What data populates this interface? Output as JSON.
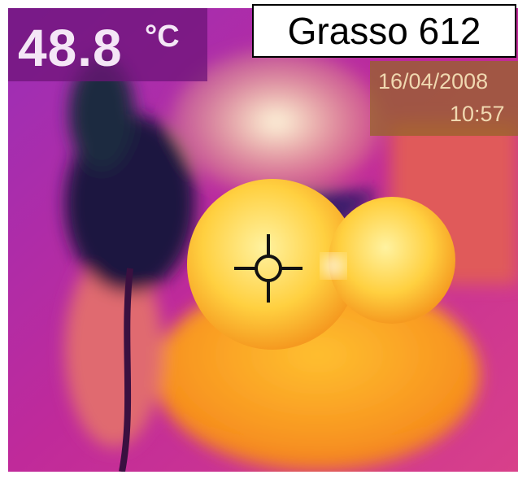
{
  "temperature": {
    "value": "48.8",
    "unit": "°C"
  },
  "label": "Grasso 612",
  "date": "16/04/2008",
  "time": "10:57"
}
